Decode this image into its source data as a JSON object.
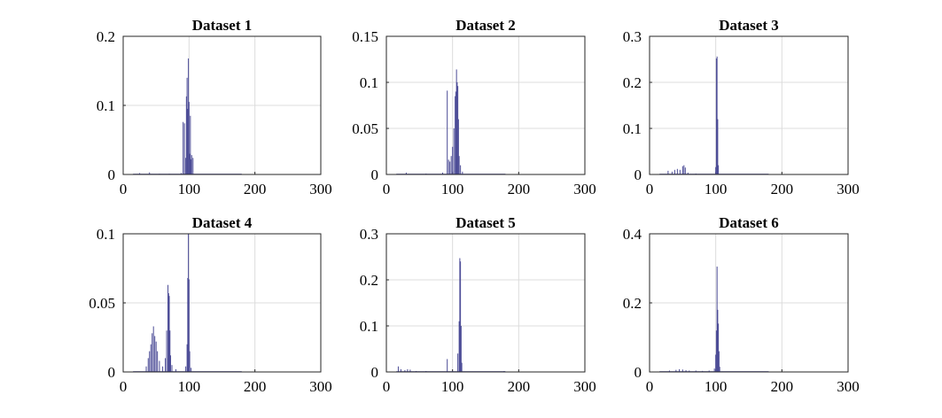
{
  "colors": {
    "series": "#4b4b96",
    "axis": "#262626",
    "grid": "#dcdcdc"
  },
  "chart_data": [
    {
      "type": "line",
      "title": "Dataset 1",
      "xlim": [
        0,
        300
      ],
      "ylim": [
        0,
        0.2
      ],
      "xticks": [
        "0",
        "100",
        "200",
        "300"
      ],
      "yticks": [
        "0",
        "0.1",
        "0.2"
      ],
      "grid": true,
      "peaks": [
        {
          "x": 25,
          "y": 0.002
        },
        {
          "x": 40,
          "y": 0.003
        },
        {
          "x": 55,
          "y": 0.001
        },
        {
          "x": 70,
          "y": 0.001
        },
        {
          "x": 88,
          "y": 0.002
        },
        {
          "x": 91,
          "y": 0.076
        },
        {
          "x": 93,
          "y": 0.074
        },
        {
          "x": 95,
          "y": 0.024
        },
        {
          "x": 96,
          "y": 0.113
        },
        {
          "x": 97,
          "y": 0.14
        },
        {
          "x": 98,
          "y": 0.095
        },
        {
          "x": 99,
          "y": 0.168
        },
        {
          "x": 100,
          "y": 0.105
        },
        {
          "x": 101,
          "y": 0.03
        },
        {
          "x": 102,
          "y": 0.085
        },
        {
          "x": 103,
          "y": 0.022
        },
        {
          "x": 104,
          "y": 0.028
        },
        {
          "x": 106,
          "y": 0.024
        }
      ]
    },
    {
      "type": "line",
      "title": "Dataset 2",
      "xlim": [
        0,
        300
      ],
      "ylim": [
        0,
        0.15
      ],
      "xticks": [
        "0",
        "100",
        "200",
        "300"
      ],
      "yticks": [
        "0",
        "0.05",
        "0.1",
        "0.15"
      ],
      "grid": true,
      "peaks": [
        {
          "x": 30,
          "y": 0.002
        },
        {
          "x": 60,
          "y": 0.001
        },
        {
          "x": 85,
          "y": 0.002
        },
        {
          "x": 92,
          "y": 0.091
        },
        {
          "x": 94,
          "y": 0.016
        },
        {
          "x": 96,
          "y": 0.014
        },
        {
          "x": 98,
          "y": 0.02
        },
        {
          "x": 100,
          "y": 0.03
        },
        {
          "x": 102,
          "y": 0.05
        },
        {
          "x": 104,
          "y": 0.085
        },
        {
          "x": 105,
          "y": 0.09
        },
        {
          "x": 106,
          "y": 0.114
        },
        {
          "x": 107,
          "y": 0.1
        },
        {
          "x": 108,
          "y": 0.096
        },
        {
          "x": 109,
          "y": 0.06
        },
        {
          "x": 110,
          "y": 0.02
        },
        {
          "x": 112,
          "y": 0.01
        },
        {
          "x": 115,
          "y": 0.003
        }
      ]
    },
    {
      "type": "line",
      "title": "Dataset 3",
      "xlim": [
        0,
        300
      ],
      "ylim": [
        0,
        0.3
      ],
      "xticks": [
        "0",
        "100",
        "200",
        "300"
      ],
      "yticks": [
        "0",
        "0.1",
        "0.2",
        "0.3"
      ],
      "grid": true,
      "peaks": [
        {
          "x": 28,
          "y": 0.008
        },
        {
          "x": 34,
          "y": 0.006
        },
        {
          "x": 38,
          "y": 0.01
        },
        {
          "x": 42,
          "y": 0.012
        },
        {
          "x": 46,
          "y": 0.01
        },
        {
          "x": 50,
          "y": 0.018
        },
        {
          "x": 52,
          "y": 0.02
        },
        {
          "x": 54,
          "y": 0.015
        },
        {
          "x": 58,
          "y": 0.004
        },
        {
          "x": 70,
          "y": 0.002
        },
        {
          "x": 100,
          "y": 0.016
        },
        {
          "x": 101,
          "y": 0.252
        },
        {
          "x": 102,
          "y": 0.256
        },
        {
          "x": 103,
          "y": 0.12
        },
        {
          "x": 104,
          "y": 0.02
        }
      ]
    },
    {
      "type": "line",
      "title": "Dataset 4",
      "xlim": [
        0,
        300
      ],
      "ylim": [
        0,
        0.1
      ],
      "xticks": [
        "0",
        "100",
        "200",
        "300"
      ],
      "yticks": [
        "0",
        "0.05",
        "0.1"
      ],
      "grid": true,
      "peaks": [
        {
          "x": 35,
          "y": 0.004
        },
        {
          "x": 38,
          "y": 0.01
        },
        {
          "x": 40,
          "y": 0.015
        },
        {
          "x": 42,
          "y": 0.02
        },
        {
          "x": 44,
          "y": 0.028
        },
        {
          "x": 46,
          "y": 0.033
        },
        {
          "x": 48,
          "y": 0.026
        },
        {
          "x": 50,
          "y": 0.022
        },
        {
          "x": 52,
          "y": 0.015
        },
        {
          "x": 55,
          "y": 0.008
        },
        {
          "x": 60,
          "y": 0.004
        },
        {
          "x": 64,
          "y": 0.01
        },
        {
          "x": 66,
          "y": 0.03
        },
        {
          "x": 68,
          "y": 0.063
        },
        {
          "x": 69,
          "y": 0.057
        },
        {
          "x": 70,
          "y": 0.055
        },
        {
          "x": 71,
          "y": 0.03
        },
        {
          "x": 72,
          "y": 0.012
        },
        {
          "x": 74,
          "y": 0.005
        },
        {
          "x": 80,
          "y": 0.002
        },
        {
          "x": 95,
          "y": 0.004
        },
        {
          "x": 97,
          "y": 0.02
        },
        {
          "x": 98,
          "y": 0.068
        },
        {
          "x": 99,
          "y": 0.1
        },
        {
          "x": 100,
          "y": 0.067
        },
        {
          "x": 101,
          "y": 0.015
        },
        {
          "x": 103,
          "y": 0.003
        }
      ]
    },
    {
      "type": "line",
      "title": "Dataset 5",
      "xlim": [
        0,
        300
      ],
      "ylim": [
        0,
        0.3
      ],
      "xticks": [
        "0",
        "100",
        "200",
        "300"
      ],
      "yticks": [
        "0",
        "0.1",
        "0.2",
        "0.3"
      ],
      "grid": true,
      "peaks": [
        {
          "x": 18,
          "y": 0.012
        },
        {
          "x": 22,
          "y": 0.006
        },
        {
          "x": 28,
          "y": 0.004
        },
        {
          "x": 32,
          "y": 0.006
        },
        {
          "x": 36,
          "y": 0.005
        },
        {
          "x": 45,
          "y": 0.002
        },
        {
          "x": 60,
          "y": 0.002
        },
        {
          "x": 75,
          "y": 0.001
        },
        {
          "x": 92,
          "y": 0.028
        },
        {
          "x": 100,
          "y": 0.002
        },
        {
          "x": 108,
          "y": 0.04
        },
        {
          "x": 110,
          "y": 0.11
        },
        {
          "x": 111,
          "y": 0.247
        },
        {
          "x": 112,
          "y": 0.24
        },
        {
          "x": 113,
          "y": 0.1
        },
        {
          "x": 114,
          "y": 0.02
        },
        {
          "x": 150,
          "y": 0.001
        },
        {
          "x": 178,
          "y": 0.002
        }
      ]
    },
    {
      "type": "line",
      "title": "Dataset 6",
      "xlim": [
        0,
        300
      ],
      "ylim": [
        0,
        0.4
      ],
      "xticks": [
        "0",
        "100",
        "200",
        "300"
      ],
      "yticks": [
        "0",
        "0.2",
        "0.4"
      ],
      "grid": true,
      "peaks": [
        {
          "x": 30,
          "y": 0.004
        },
        {
          "x": 40,
          "y": 0.006
        },
        {
          "x": 45,
          "y": 0.008
        },
        {
          "x": 50,
          "y": 0.007
        },
        {
          "x": 55,
          "y": 0.005
        },
        {
          "x": 60,
          "y": 0.004
        },
        {
          "x": 70,
          "y": 0.004
        },
        {
          "x": 80,
          "y": 0.003
        },
        {
          "x": 90,
          "y": 0.004
        },
        {
          "x": 98,
          "y": 0.01
        },
        {
          "x": 100,
          "y": 0.05
        },
        {
          "x": 101,
          "y": 0.12
        },
        {
          "x": 102,
          "y": 0.305
        },
        {
          "x": 103,
          "y": 0.18
        },
        {
          "x": 104,
          "y": 0.14
        },
        {
          "x": 105,
          "y": 0.06
        },
        {
          "x": 106,
          "y": 0.015
        }
      ]
    }
  ]
}
